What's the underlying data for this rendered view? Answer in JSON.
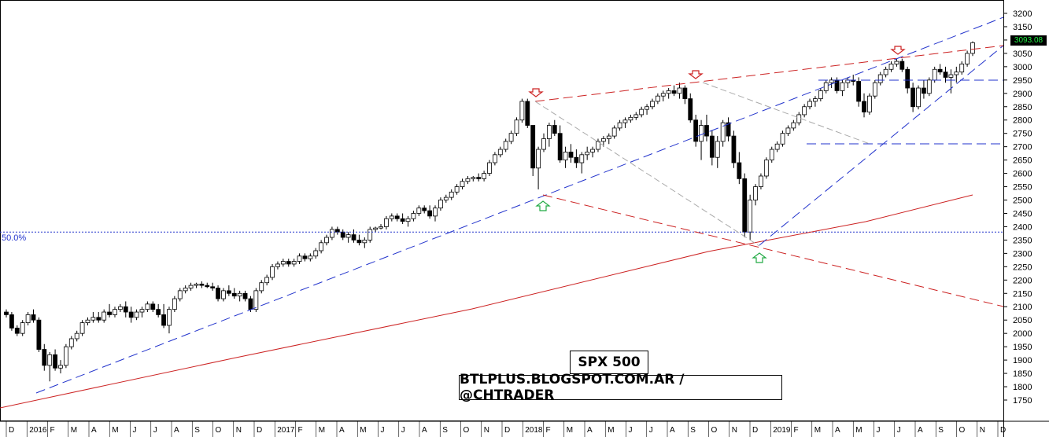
{
  "chart_data": {
    "type": "candlestick",
    "title": "SPX 500",
    "subtitle": "BTLPLUS.BLOGSPOT.COM.AR / @CHTRADER",
    "ylim": [
      1720,
      3230
    ],
    "y_ticks": [
      3200,
      3150,
      3100,
      3050,
      3000,
      2950,
      2900,
      2850,
      2800,
      2750,
      2700,
      2650,
      2600,
      2550,
      2500,
      2450,
      2400,
      2350,
      2300,
      2250,
      2200,
      2150,
      2100,
      2050,
      2000,
      1950,
      1900,
      1850,
      1800,
      1750
    ],
    "x_tick_labels": [
      "D",
      "2016",
      "F",
      "M",
      "A",
      "M",
      "J",
      "J",
      "A",
      "S",
      "O",
      "N",
      "D",
      "2017",
      "F",
      "M",
      "A",
      "M",
      "J",
      "J",
      "A",
      "S",
      "O",
      "N",
      "D",
      "2018",
      "F",
      "M",
      "A",
      "M",
      "J",
      "J",
      "A",
      "S",
      "O",
      "N",
      "D",
      "2019",
      "F",
      "M",
      "A",
      "M",
      "J",
      "J",
      "A",
      "S",
      "O",
      "N",
      "D"
    ],
    "fib_label": "50.0%",
    "fib_level": 2380,
    "last_price": "3093.08",
    "grid": false,
    "series": [
      {
        "values": [
          [
            2080,
            2090,
            2060,
            2070
          ],
          [
            2070,
            2080,
            2010,
            2020
          ],
          [
            2020,
            2030,
            1990,
            2000
          ],
          [
            2000,
            2050,
            1990,
            2040
          ],
          [
            2040,
            2080,
            2030,
            2070
          ],
          [
            2070,
            2090,
            2040,
            2050
          ],
          [
            2050,
            2060,
            1930,
            1940
          ],
          [
            1940,
            1960,
            1860,
            1880
          ],
          [
            1880,
            1930,
            1820,
            1920
          ],
          [
            1920,
            1940,
            1860,
            1870
          ],
          [
            1870,
            1900,
            1850,
            1880
          ],
          [
            1880,
            1960,
            1870,
            1950
          ],
          [
            1950,
            1990,
            1940,
            1980
          ],
          [
            1980,
            2010,
            1970,
            2000
          ],
          [
            2000,
            2050,
            1990,
            2040
          ],
          [
            2040,
            2060,
            2030,
            2050
          ],
          [
            2050,
            2080,
            2040,
            2060
          ],
          [
            2060,
            2080,
            2040,
            2050
          ],
          [
            2050,
            2090,
            2040,
            2080
          ],
          [
            2080,
            2110,
            2060,
            2070
          ],
          [
            2070,
            2100,
            2060,
            2090
          ],
          [
            2090,
            2110,
            2080,
            2100
          ],
          [
            2100,
            2120,
            2060,
            2080
          ],
          [
            2080,
            2100,
            2040,
            2060
          ],
          [
            2060,
            2090,
            2050,
            2080
          ],
          [
            2080,
            2100,
            2060,
            2090
          ],
          [
            2090,
            2120,
            2080,
            2110
          ],
          [
            2110,
            2120,
            2080,
            2090
          ],
          [
            2090,
            2110,
            2060,
            2070
          ],
          [
            2070,
            2110,
            2020,
            2030
          ],
          [
            2030,
            2100,
            2000,
            2090
          ],
          [
            2090,
            2140,
            2080,
            2130
          ],
          [
            2130,
            2170,
            2120,
            2160
          ],
          [
            2160,
            2180,
            2150,
            2170
          ],
          [
            2170,
            2190,
            2160,
            2180
          ],
          [
            2180,
            2190,
            2170,
            2185
          ],
          [
            2185,
            2195,
            2170,
            2180
          ],
          [
            2180,
            2190,
            2170,
            2175
          ],
          [
            2175,
            2190,
            2160,
            2170
          ],
          [
            2170,
            2180,
            2120,
            2130
          ],
          [
            2130,
            2170,
            2120,
            2160
          ],
          [
            2160,
            2180,
            2140,
            2150
          ],
          [
            2150,
            2170,
            2130,
            2140
          ],
          [
            2140,
            2160,
            2120,
            2150
          ],
          [
            2150,
            2160,
            2120,
            2130
          ],
          [
            2130,
            2140,
            2080,
            2090
          ],
          [
            2090,
            2170,
            2080,
            2160
          ],
          [
            2160,
            2200,
            2150,
            2190
          ],
          [
            2190,
            2220,
            2180,
            2210
          ],
          [
            2210,
            2260,
            2200,
            2250
          ],
          [
            2250,
            2270,
            2240,
            2260
          ],
          [
            2260,
            2280,
            2250,
            2270
          ],
          [
            2270,
            2280,
            2250,
            2260
          ],
          [
            2260,
            2280,
            2250,
            2270
          ],
          [
            2270,
            2300,
            2260,
            2290
          ],
          [
            2290,
            2300,
            2270,
            2280
          ],
          [
            2280,
            2300,
            2270,
            2290
          ],
          [
            2290,
            2320,
            2280,
            2310
          ],
          [
            2310,
            2350,
            2300,
            2340
          ],
          [
            2340,
            2370,
            2330,
            2360
          ],
          [
            2360,
            2400,
            2350,
            2390
          ],
          [
            2390,
            2400,
            2370,
            2380
          ],
          [
            2380,
            2390,
            2350,
            2360
          ],
          [
            2360,
            2380,
            2340,
            2370
          ],
          [
            2370,
            2390,
            2340,
            2350
          ],
          [
            2350,
            2370,
            2330,
            2340
          ],
          [
            2340,
            2360,
            2320,
            2350
          ],
          [
            2350,
            2400,
            2340,
            2390
          ],
          [
            2390,
            2400,
            2380,
            2395
          ],
          [
            2395,
            2410,
            2390,
            2400
          ],
          [
            2400,
            2440,
            2390,
            2430
          ],
          [
            2430,
            2450,
            2420,
            2440
          ],
          [
            2440,
            2450,
            2420,
            2430
          ],
          [
            2430,
            2450,
            2410,
            2420
          ],
          [
            2420,
            2440,
            2400,
            2430
          ],
          [
            2430,
            2460,
            2420,
            2450
          ],
          [
            2450,
            2480,
            2440,
            2470
          ],
          [
            2470,
            2480,
            2450,
            2460
          ],
          [
            2460,
            2480,
            2430,
            2440
          ],
          [
            2440,
            2480,
            2420,
            2470
          ],
          [
            2470,
            2510,
            2460,
            2500
          ],
          [
            2500,
            2520,
            2490,
            2510
          ],
          [
            2510,
            2540,
            2500,
            2530
          ],
          [
            2530,
            2560,
            2520,
            2550
          ],
          [
            2550,
            2580,
            2540,
            2570
          ],
          [
            2570,
            2590,
            2560,
            2580
          ],
          [
            2580,
            2590,
            2570,
            2585
          ],
          [
            2585,
            2600,
            2570,
            2580
          ],
          [
            2580,
            2610,
            2570,
            2600
          ],
          [
            2600,
            2650,
            2590,
            2640
          ],
          [
            2640,
            2680,
            2630,
            2670
          ],
          [
            2670,
            2700,
            2660,
            2690
          ],
          [
            2690,
            2730,
            2680,
            2720
          ],
          [
            2720,
            2760,
            2710,
            2750
          ],
          [
            2750,
            2810,
            2740,
            2800
          ],
          [
            2800,
            2880,
            2790,
            2870
          ],
          [
            2870,
            2880,
            2770,
            2780
          ],
          [
            2780,
            2780,
            2590,
            2620
          ],
          [
            2620,
            2700,
            2540,
            2690
          ],
          [
            2690,
            2750,
            2680,
            2730
          ],
          [
            2730,
            2790,
            2700,
            2780
          ],
          [
            2780,
            2800,
            2740,
            2750
          ],
          [
            2750,
            2780,
            2640,
            2650
          ],
          [
            2650,
            2700,
            2620,
            2680
          ],
          [
            2680,
            2710,
            2640,
            2660
          ],
          [
            2660,
            2690,
            2620,
            2640
          ],
          [
            2640,
            2680,
            2600,
            2670
          ],
          [
            2670,
            2700,
            2650,
            2680
          ],
          [
            2680,
            2700,
            2660,
            2690
          ],
          [
            2690,
            2730,
            2680,
            2720
          ],
          [
            2720,
            2740,
            2700,
            2730
          ],
          [
            2730,
            2750,
            2710,
            2740
          ],
          [
            2740,
            2780,
            2730,
            2770
          ],
          [
            2770,
            2800,
            2760,
            2790
          ],
          [
            2790,
            2810,
            2770,
            2800
          ],
          [
            2800,
            2820,
            2790,
            2810
          ],
          [
            2810,
            2830,
            2800,
            2820
          ],
          [
            2820,
            2850,
            2810,
            2840
          ],
          [
            2840,
            2860,
            2820,
            2850
          ],
          [
            2850,
            2880,
            2840,
            2870
          ],
          [
            2870,
            2900,
            2860,
            2890
          ],
          [
            2890,
            2910,
            2870,
            2900
          ],
          [
            2900,
            2920,
            2880,
            2910
          ],
          [
            2910,
            2930,
            2890,
            2900
          ],
          [
            2900,
            2940,
            2880,
            2920
          ],
          [
            2920,
            2930,
            2860,
            2880
          ],
          [
            2880,
            2900,
            2790,
            2800
          ],
          [
            2800,
            2820,
            2700,
            2720
          ],
          [
            2720,
            2800,
            2650,
            2780
          ],
          [
            2780,
            2820,
            2720,
            2740
          ],
          [
            2740,
            2760,
            2630,
            2660
          ],
          [
            2660,
            2740,
            2620,
            2720
          ],
          [
            2720,
            2800,
            2700,
            2790
          ],
          [
            2790,
            2810,
            2720,
            2740
          ],
          [
            2740,
            2760,
            2620,
            2640
          ],
          [
            2640,
            2680,
            2560,
            2580
          ],
          [
            2580,
            2600,
            2360,
            2380
          ],
          [
            2380,
            2520,
            2350,
            2500
          ],
          [
            2500,
            2560,
            2480,
            2550
          ],
          [
            2550,
            2600,
            2540,
            2590
          ],
          [
            2590,
            2660,
            2580,
            2650
          ],
          [
            2650,
            2700,
            2640,
            2690
          ],
          [
            2690,
            2720,
            2680,
            2710
          ],
          [
            2710,
            2760,
            2700,
            2750
          ],
          [
            2750,
            2780,
            2740,
            2770
          ],
          [
            2770,
            2800,
            2760,
            2790
          ],
          [
            2790,
            2830,
            2780,
            2820
          ],
          [
            2820,
            2860,
            2810,
            2850
          ],
          [
            2850,
            2880,
            2840,
            2870
          ],
          [
            2870,
            2890,
            2850,
            2880
          ],
          [
            2880,
            2920,
            2870,
            2910
          ],
          [
            2910,
            2950,
            2900,
            2940
          ],
          [
            2940,
            2960,
            2920,
            2950
          ],
          [
            2950,
            2960,
            2900,
            2910
          ],
          [
            2910,
            2950,
            2890,
            2940
          ],
          [
            2940,
            2960,
            2920,
            2950
          ],
          [
            2950,
            2970,
            2930,
            2945
          ],
          [
            2945,
            2960,
            2850,
            2870
          ],
          [
            2870,
            2900,
            2810,
            2830
          ],
          [
            2830,
            2900,
            2820,
            2890
          ],
          [
            2890,
            2950,
            2880,
            2940
          ],
          [
            2940,
            2980,
            2930,
            2970
          ],
          [
            2970,
            3000,
            2960,
            2990
          ],
          [
            2990,
            3020,
            2980,
            3010
          ],
          [
            3010,
            3030,
            3000,
            3020
          ],
          [
            3020,
            3030,
            2980,
            2990
          ],
          [
            2990,
            3000,
            2900,
            2920
          ],
          [
            2920,
            2940,
            2830,
            2850
          ],
          [
            2850,
            2930,
            2840,
            2920
          ],
          [
            2920,
            2950,
            2880,
            2900
          ],
          [
            2900,
            2960,
            2890,
            2950
          ],
          [
            2950,
            3000,
            2940,
            2990
          ],
          [
            2990,
            3010,
            2970,
            2980
          ],
          [
            2980,
            3000,
            2940,
            2960
          ],
          [
            2960,
            2990,
            2900,
            2970
          ],
          [
            2970,
            3000,
            2940,
            2980
          ],
          [
            2980,
            3020,
            2970,
            3010
          ],
          [
            3010,
            3060,
            3000,
            3050
          ],
          [
            3050,
            3095,
            3040,
            3090
          ]
        ]
      }
    ]
  },
  "annotations": {
    "sell_arrow_color": "#cc2222",
    "buy_arrow_color": "#22aa44",
    "trendline_red": "#cc2222",
    "trendline_blue": "#2233cc",
    "projection_gray": "#aaaaaa"
  }
}
